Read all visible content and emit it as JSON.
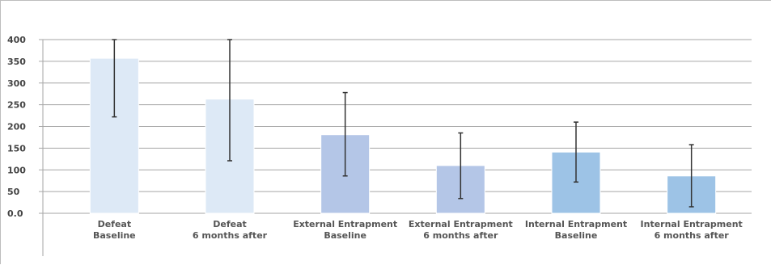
{
  "chart_data": {
    "type": "bar",
    "title": "",
    "xlabel": "",
    "ylabel": "",
    "ylim": [
      0,
      400
    ],
    "yticks": [
      "0.0",
      "50",
      "100",
      "150",
      "200",
      "250",
      "300",
      "350",
      "400"
    ],
    "grid": true,
    "categories": [
      [
        "Defeat",
        "Baseline"
      ],
      [
        "Defeat",
        "6 months after"
      ],
      [
        "External Entrapment",
        "Baseline"
      ],
      [
        "External Entrapment",
        "6 months after"
      ],
      [
        "Internal Entrapment",
        "Baseline"
      ],
      [
        "Internal Entrapment",
        "6 months after"
      ]
    ],
    "values": [
      357,
      263,
      181,
      110,
      141,
      86
    ],
    "error_low": [
      222,
      121,
      86,
      34,
      72,
      15
    ],
    "error_high": [
      400,
      400,
      278,
      185,
      210,
      158
    ],
    "colors": [
      "#dde9f6",
      "#dde9f6",
      "#b4c6e7",
      "#b4c6e7",
      "#9dc3e6",
      "#9dc3e6"
    ]
  }
}
